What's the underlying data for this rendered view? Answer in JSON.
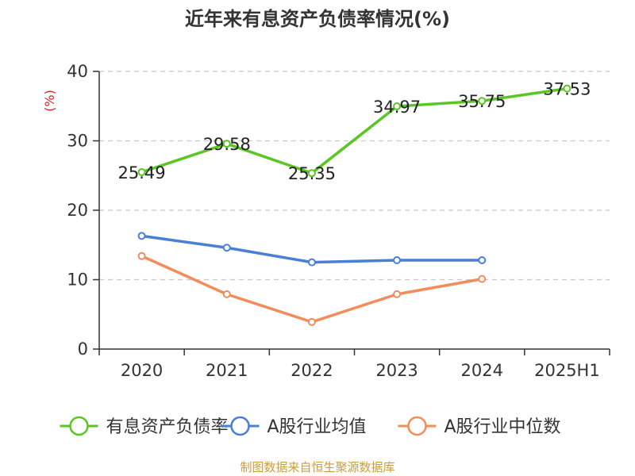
{
  "chart_data": {
    "type": "line",
    "title": "近年来有息资产负债率情况(%)",
    "ylabel": "(%)",
    "xlabel": "",
    "ylim": [
      0,
      40
    ],
    "yticks": [
      0,
      10,
      20,
      30,
      40
    ],
    "categories": [
      "2020",
      "2021",
      "2022",
      "2023",
      "2024",
      "2025H1"
    ],
    "series": [
      {
        "name": "有息资产负债率",
        "color": "#5ac623",
        "values": [
          25.49,
          29.58,
          25.35,
          34.97,
          35.75,
          37.53
        ],
        "labels": [
          "25.49",
          "29.58",
          "25.35",
          "34.97",
          "35.75",
          "37.53"
        ]
      },
      {
        "name": "A股行业均值",
        "color": "#4a7fd6",
        "values": [
          16.3,
          14.6,
          12.5,
          12.8,
          12.8,
          null
        ]
      },
      {
        "name": "A股行业中位数",
        "color": "#f28c5b",
        "values": [
          13.4,
          7.9,
          3.9,
          7.9,
          10.1,
          null
        ]
      }
    ],
    "grid": "horizontal-dashed",
    "legend_position": "bottom"
  },
  "source": "制图数据来自恒生聚源数据库"
}
